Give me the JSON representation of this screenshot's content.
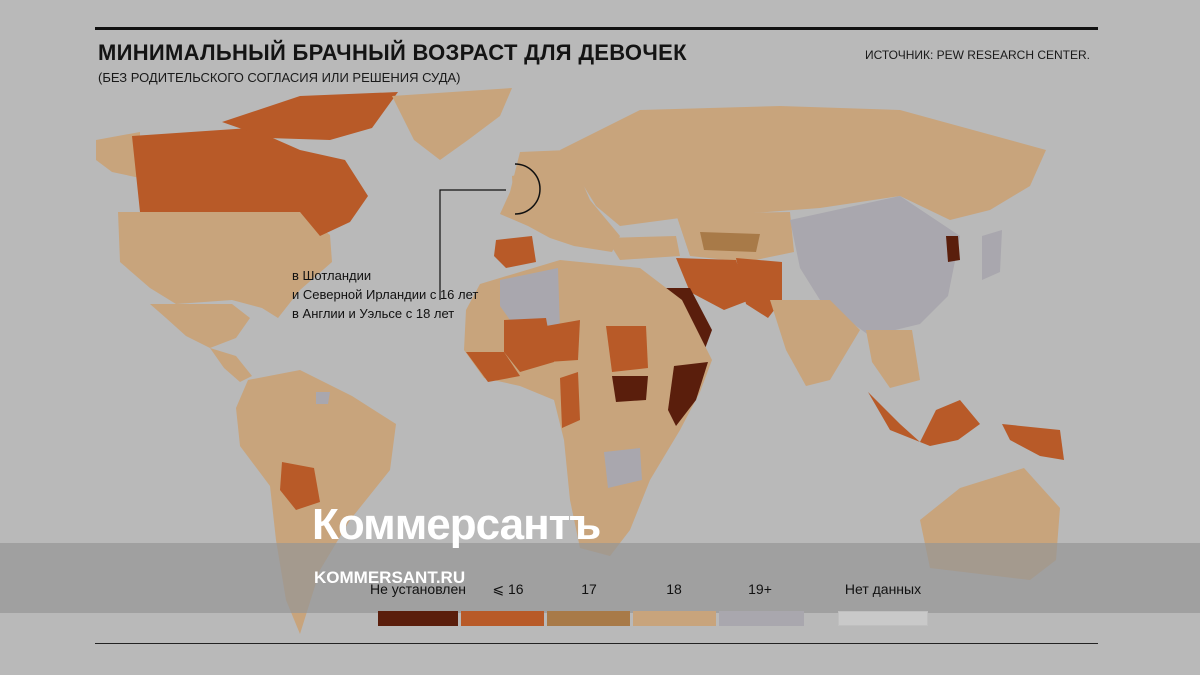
{
  "header": {
    "title": "МИНИМАЛЬНЫЙ БРАЧНЫЙ ВОЗРАСТ ДЛЯ ДЕВОЧЕК",
    "subtitle": "(БЕЗ РОДИТЕЛЬСКОГО СОГЛАСИЯ ИЛИ РЕШЕНИЯ СУДА)",
    "source": "ИСТОЧНИК: PEW RESEARCH CENTER."
  },
  "annotation": {
    "line1": "в Шотландии",
    "line2": "и Северной Ирландии с 16 лет",
    "line3": "в Англии и Уэльсе с 18 лет"
  },
  "watermark": {
    "brand": "Коммерсантъ",
    "url": "KOMMERSANT.RU"
  },
  "colors": {
    "not_set": "#5a1e0c",
    "le16": "#b85a28",
    "a17": "#a87a48",
    "a18": "#c8a47c",
    "a19plus": "#a9a7ae",
    "no_data": "#c9c9c9",
    "background": "#b9b9b9"
  },
  "legend": [
    {
      "label": "Не установлен",
      "color": "#5a1e0c"
    },
    {
      "label": "⩽ 16",
      "color": "#b85a28"
    },
    {
      "label": "17",
      "color": "#a87a48"
    },
    {
      "label": "18",
      "color": "#c8a47c"
    },
    {
      "label": "19+",
      "color": "#a9a7ae"
    },
    {
      "label": "Нет данных",
      "color": "#c9c9c9"
    }
  ]
}
